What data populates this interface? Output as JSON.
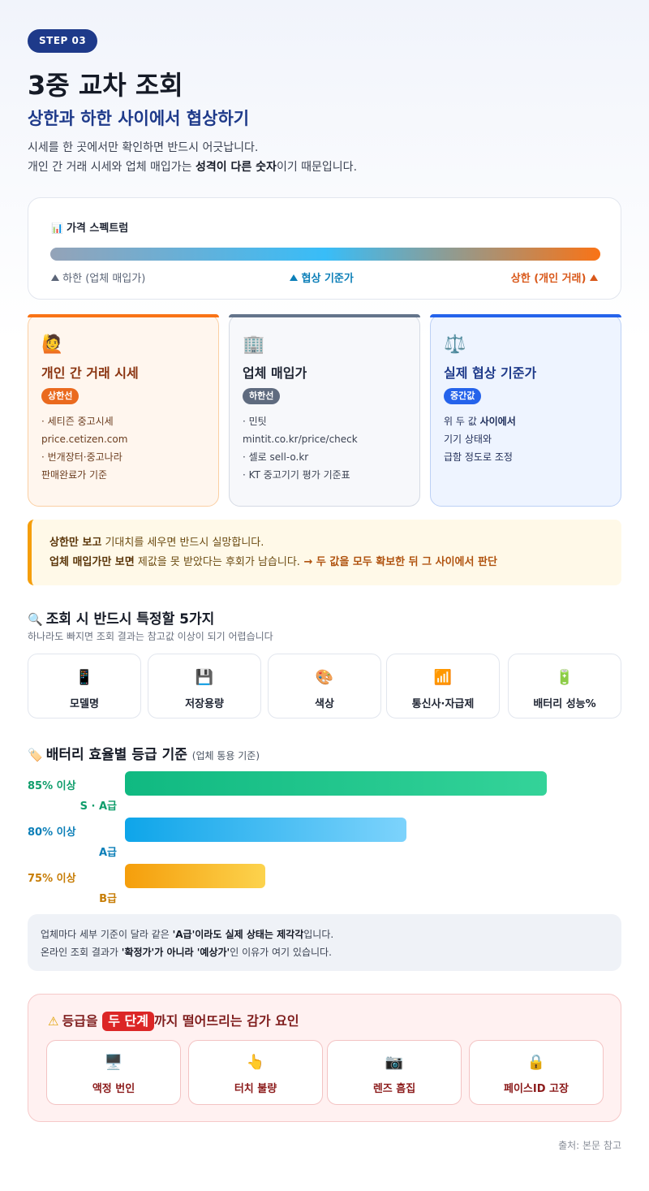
{
  "step_badge": "STEP 03",
  "title": "3중 교차 조회",
  "subtitle": "상한과 하한 사이에서 협상하기",
  "intro": {
    "line1": "시세를 한 곳에서만 확인하면 반드시 어긋납니다.",
    "line2_pre": "개인 간 거래 시세와 업체 매입가는 ",
    "line2_bold": "성격이 다른 숫자",
    "line2_post": "이기 때문입니다."
  },
  "spectrum": {
    "icon": "bar-chart-icon",
    "title": "가격 스펙트럼",
    "low_label": "하한 (업체 매입가)",
    "mid_label": "협상 기준가",
    "high_label": "상한 (개인 거래)"
  },
  "cards": [
    {
      "icon": "raising-hand-person-icon",
      "title": "개인 간 거래 시세",
      "badge": "상한선",
      "lines": [
        "· 세티즌 중고시세",
        "price.cetizen.com",
        "· 번개장터·중고나라",
        "판매완료가 기준"
      ]
    },
    {
      "icon": "office-building-icon",
      "title": "업체 매입가",
      "badge": "하한선",
      "lines": [
        "· 민팃",
        "mintit.co.kr/price/check",
        "· 셀로 sell-o.kr",
        "· KT 중고기기 평가 기준표"
      ]
    },
    {
      "icon": "balance-scale-icon",
      "title": "실제 협상 기준가",
      "badge": "중간값",
      "line1_pre": "위 두 값 ",
      "line1_bold": "사이에서",
      "line2": "기기 상태와",
      "line3": "급함 정도로 조정"
    }
  ],
  "notice": {
    "l1_bold": "상한만 보고",
    "l1_rest": " 기대치를 세우면 반드시 실망합니다.",
    "l2_bold": "업체 매입가만 보면",
    "l2_rest": " 제값을 못 받았다는 후회가 남습니다.",
    "l2_arrow": " → 두 값을 모두 확보한 뒤 그 사이에서 판단"
  },
  "specs_section": {
    "icon": "magnifier-icon",
    "title": "조회 시 반드시 특정할 5가지",
    "subtitle": "하나라도 빠지면 조회 결과는 참고값 이상이 되기 어렵습니다",
    "items": [
      {
        "icon": "phone-icon",
        "label": "모델명"
      },
      {
        "icon": "floppy-disk-icon",
        "label": "저장용량"
      },
      {
        "icon": "palette-icon",
        "label": "색상"
      },
      {
        "icon": "signal-bars-icon",
        "label": "통신사·자급제"
      },
      {
        "icon": "battery-icon",
        "label": "배터리 성능%"
      }
    ]
  },
  "battery_section": {
    "icon": "tag-icon",
    "title": "배터리 효율별 등급 기준",
    "title_note": "(업체 통용 기준)",
    "rows": [
      {
        "threshold": "85% 이상",
        "grade": "S · A급",
        "level": 85,
        "color": "#0f9d6b"
      },
      {
        "threshold": "80% 이상",
        "grade": "A급",
        "level": 80,
        "color": "#0c7fb8"
      },
      {
        "threshold": "75% 이상",
        "grade": "B급",
        "level": 75,
        "color": "#c77d06"
      }
    ]
  },
  "grade_note": {
    "l1_pre": "업체마다 세부 기준이 달라 같은 ",
    "l1_bold1": "'A급'이라도 실제 상태는 제각각",
    "l1_post": "입니다.",
    "l2_pre": "온라인 조회 결과가 ",
    "l2_bold1": "'확정가'가 아니라 '예상가'",
    "l2_post": "인 이유가 여기 있습니다."
  },
  "deduction": {
    "icon": "warning-icon",
    "title_pre": "등급을 ",
    "title_highlight": "두 단계",
    "title_post": "까지 떨어뜨리는 감가 요인",
    "items": [
      {
        "icon": "monitor-icon",
        "label": "액정 번인"
      },
      {
        "icon": "pointing-finger-icon",
        "label": "터치 불량"
      },
      {
        "icon": "camera-icon",
        "label": "렌즈 흠집"
      },
      {
        "icon": "lock-icon",
        "label": "페이스ID 고장"
      }
    ]
  },
  "source": "출처: 본문 참고"
}
